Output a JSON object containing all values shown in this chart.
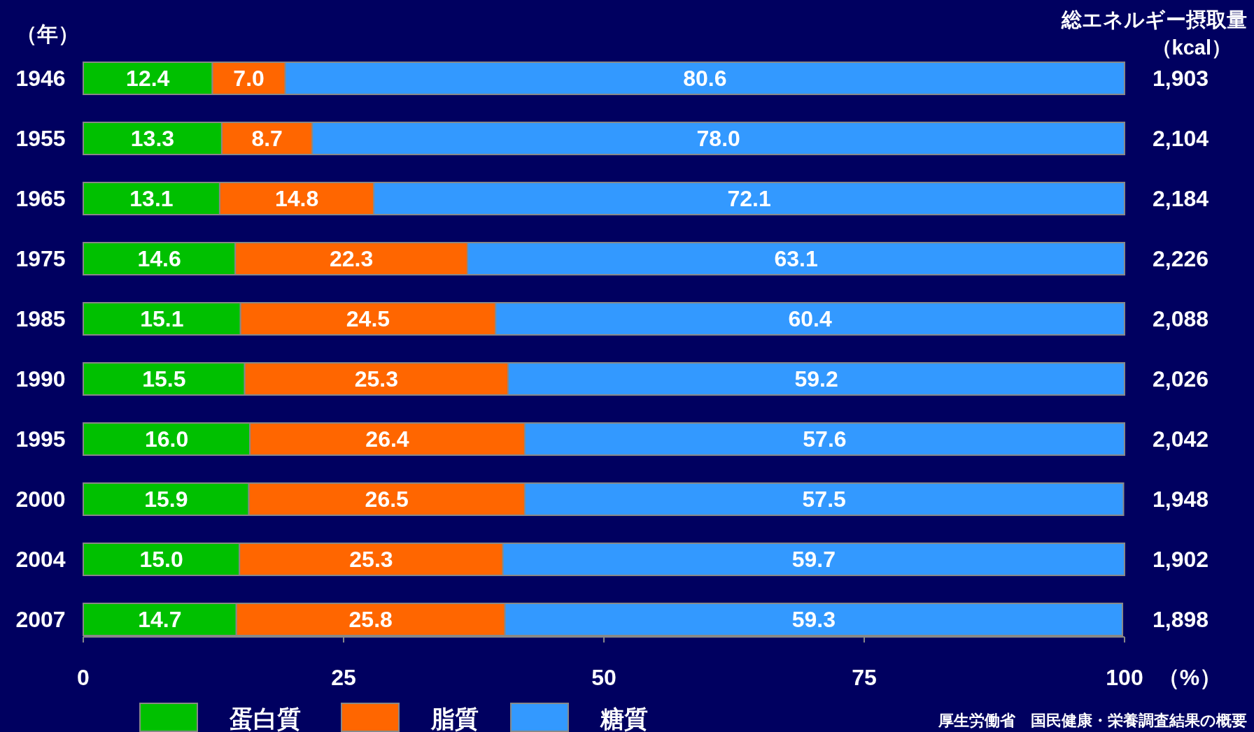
{
  "chart_data": {
    "type": "bar",
    "orientation": "horizontal",
    "stacked": true,
    "legend": "bottom",
    "ylabel": "（年）",
    "xlabel": "（%）",
    "y2label": "総エネルギー摂取量（kcal）",
    "categories": [
      "1946",
      "1955",
      "1965",
      "1975",
      "1985",
      "1990",
      "1995",
      "2000",
      "2004",
      "2007"
    ],
    "xlim": [
      0,
      100
    ],
    "xticks": [
      0,
      25,
      50,
      75,
      100
    ],
    "series": [
      {
        "name": "蛋白質",
        "color": "#00c000",
        "values": [
          12.4,
          13.3,
          13.1,
          14.6,
          15.1,
          15.5,
          16.0,
          15.9,
          15.0,
          14.7
        ],
        "value_labels": [
          "12.4",
          "13.3",
          "13.1",
          "14.6",
          "15.1",
          "15.5",
          "16.0",
          "15.9",
          "15.0",
          "14.7"
        ]
      },
      {
        "name": "脂質",
        "color": "#ff6600",
        "values": [
          7.0,
          8.7,
          14.8,
          22.3,
          24.5,
          25.3,
          26.4,
          26.5,
          25.3,
          25.8
        ],
        "value_labels": [
          "7.0",
          "8.7",
          "14.8",
          "22.3",
          "24.5",
          "25.3",
          "26.4",
          "26.5",
          "25.3",
          "25.8"
        ]
      },
      {
        "name": "糖質",
        "color": "#3399ff",
        "values": [
          80.6,
          78.0,
          72.1,
          63.1,
          60.4,
          59.2,
          57.6,
          57.5,
          59.7,
          59.3
        ],
        "value_labels": [
          "80.6",
          "78.0",
          "72.1",
          "63.1",
          "60.4",
          "59.2",
          "57.6",
          "57.5",
          "59.7",
          "59.3"
        ]
      }
    ],
    "annotations": [
      "1,903",
      "2,104",
      "2,184",
      "2,226",
      "2,088",
      "2,026",
      "2,042",
      "1,948",
      "1,902",
      "1,898",
      "厚生労働省　国民健康・栄養調査結果の概要"
    ]
  }
}
